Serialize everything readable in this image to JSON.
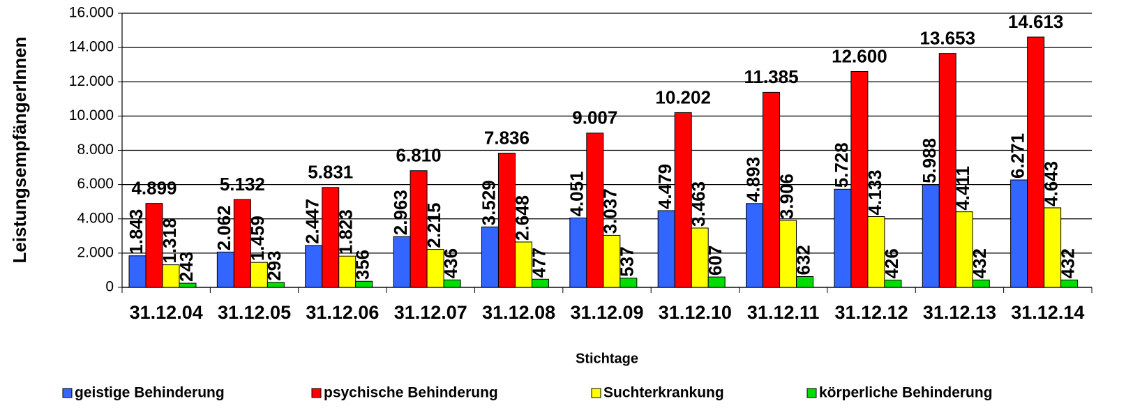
{
  "chart_data": {
    "type": "bar",
    "y_label": "LeistungsempfängerInnen",
    "x_label": "Stichtage",
    "categories": [
      "31.12.04",
      "31.12.05",
      "31.12.06",
      "31.12.07",
      "31.12.08",
      "31.12.09",
      "31.12.10",
      "31.12.11",
      "31.12.12",
      "31.12.13",
      "31.12.14"
    ],
    "series": [
      {
        "name": "geistige Behinderung",
        "color": "#3366ff",
        "values": [
          1843,
          2062,
          2447,
          2963,
          3529,
          4051,
          4479,
          4893,
          5728,
          5988,
          6271
        ],
        "value_labels": [
          "1.843",
          "2.062",
          "2.447",
          "2.963",
          "3.529",
          "4.051",
          "4.479",
          "4.893",
          "5.728",
          "5.988",
          "6.271"
        ]
      },
      {
        "name": "psychische Behinderung",
        "color": "#ff0000",
        "values": [
          4899,
          5132,
          5831,
          6810,
          7836,
          9007,
          10202,
          11385,
          12600,
          13653,
          14613
        ],
        "value_labels": [
          "4.899",
          "5.132",
          "5.831",
          "6.810",
          "7.836",
          "9.007",
          "10.202",
          "11.385",
          "12.600",
          "13.653",
          "14.613"
        ]
      },
      {
        "name": "Suchterkrankung",
        "color": "#ffff00",
        "values": [
          1318,
          1459,
          1823,
          2215,
          2648,
          3037,
          3463,
          3906,
          4133,
          4411,
          4643
        ],
        "value_labels": [
          "1.318",
          "1.459",
          "1.823",
          "2.215",
          "2.648",
          "3.037",
          "3.463",
          "3.906",
          "4.133",
          "4.411",
          "4.643"
        ]
      },
      {
        "name": "körperliche Behinderung",
        "color": "#00dd00",
        "values": [
          243,
          293,
          356,
          436,
          477,
          537,
          607,
          632,
          426,
          432,
          432
        ]
      }
    ],
    "ylim": [
      0,
      16000
    ],
    "yticks": [
      0,
      {
        "value": 2000,
        "label": "2.000"
      },
      {
        "value": 4000,
        "label": "4.000"
      },
      {
        "value": 6000,
        "label": "6.000"
      },
      {
        "value": 8000,
        "label": "8.000"
      },
      {
        "value": 10000,
        "label": "10.000"
      },
      {
        "value": 12000,
        "label": "12.000"
      },
      {
        "value": 14000,
        "label": "14.000"
      },
      {
        "value": 16000,
        "label": "16.000"
      }
    ],
    "grid": true,
    "legend": "bottom"
  }
}
